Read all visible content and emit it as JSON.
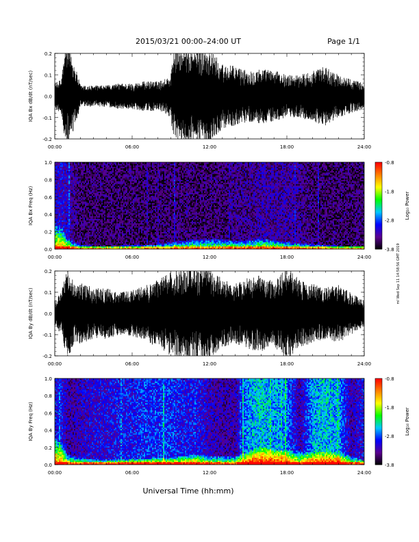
{
  "header": {
    "date_range": "2015/03/21   00:00–24:00 UT",
    "page": "Page 1/1"
  },
  "footer": {
    "xlabel": "Universal Time (hh:mm)"
  },
  "side_note": "ml Wed Sep 11 14:58:56 GMT 2019",
  "colors": {
    "trace": "#000000",
    "spectrogram_low": "#0a0010",
    "colormap": [
      "#000000",
      "#5a0090",
      "#0000ff",
      "#00c8ff",
      "#00ff00",
      "#ffff00",
      "#ff8000",
      "#ff0000"
    ]
  },
  "chart_data": [
    {
      "type": "line",
      "id": "bx_waveform",
      "ylabel": "IQA Bx dB/dt (nT/sec)",
      "xlim": [
        0,
        24
      ],
      "ylim": [
        -0.2,
        0.2
      ],
      "xticks": [
        "00:00",
        "06:00",
        "12:00",
        "18:00",
        "24:00"
      ],
      "yticks": [
        "-0.2",
        "-0.1",
        "0.0",
        "0.1",
        "0.2"
      ],
      "x": [
        0,
        0.5,
        0.8,
        1.0,
        1.3,
        2,
        3,
        4,
        5,
        6,
        7,
        8,
        8.5,
        9,
        9.2,
        10,
        11,
        12,
        13,
        14,
        15,
        16,
        17,
        18,
        19,
        20,
        21,
        22,
        23,
        24
      ],
      "y": [
        0.06,
        0.08,
        0.22,
        0.22,
        0.2,
        0.05,
        0.05,
        0.05,
        0.06,
        0.06,
        0.07,
        0.07,
        0.08,
        0.1,
        0.22,
        0.22,
        0.22,
        0.22,
        0.15,
        0.14,
        0.12,
        0.13,
        0.12,
        0.1,
        0.1,
        0.12,
        0.14,
        0.1,
        0.08,
        0.06
      ]
    },
    {
      "type": "heatmap",
      "id": "bx_spectrogram",
      "ylabel": "IQA Bx Freq (Hz)",
      "xlim": [
        0,
        24
      ],
      "ylim": [
        0.0,
        1.0
      ],
      "xticks": [
        "00:00",
        "06:00",
        "12:00",
        "18:00",
        "24:00"
      ],
      "yticks": [
        "0.0",
        "0.2",
        "0.4",
        "0.6",
        "0.8",
        "1.0"
      ],
      "colorbar": {
        "label": "Log₁₀ Power",
        "ticks": [
          "-0.8",
          "-1.8",
          "-2.8",
          "-3.8"
        ],
        "range": [
          -3.8,
          -0.8
        ]
      },
      "x": [
        0,
        0.5,
        1,
        1.5,
        2,
        3,
        4,
        5,
        6,
        7,
        8,
        9,
        10,
        11,
        12,
        13,
        14,
        15,
        16,
        17,
        18,
        19,
        20,
        21,
        22,
        23,
        24
      ],
      "low_band_top": [
        0.3,
        0.25,
        0.12,
        0.08,
        0.05,
        0.04,
        0.04,
        0.04,
        0.05,
        0.05,
        0.06,
        0.08,
        0.1,
        0.12,
        0.12,
        0.12,
        0.1,
        0.1,
        0.12,
        0.1,
        0.08,
        0.07,
        0.06,
        0.05,
        0.04,
        0.04,
        0.04
      ],
      "background_level": [
        -3.2,
        -3.1,
        -3.2,
        -3.4,
        -3.5,
        -3.5,
        -3.5,
        -3.5,
        -3.5,
        -3.5,
        -3.5,
        -3.5,
        -3.5,
        -3.5,
        -3.5,
        -3.5,
        -3.4,
        -3.4,
        -3.3,
        -3.3,
        -3.3,
        -3.4,
        -3.5,
        -3.5,
        -3.5,
        -3.5,
        -3.5
      ]
    },
    {
      "type": "line",
      "id": "by_waveform",
      "ylabel": "IQA By dB/dt (nT/sec)",
      "xlim": [
        0,
        24
      ],
      "ylim": [
        -0.2,
        0.2
      ],
      "xticks": [
        "00:00",
        "06:00",
        "12:00",
        "18:00",
        "24:00"
      ],
      "yticks": [
        "-0.2",
        "-0.1",
        "0.0",
        "0.1",
        "0.2"
      ],
      "x": [
        0,
        0.5,
        1,
        1.5,
        2,
        3,
        4,
        5,
        6,
        7,
        8,
        9,
        10,
        11,
        12,
        13,
        14,
        15,
        16,
        17,
        18,
        19,
        20,
        21,
        22,
        23,
        24
      ],
      "y": [
        0.06,
        0.1,
        0.22,
        0.14,
        0.15,
        0.12,
        0.12,
        0.1,
        0.11,
        0.13,
        0.16,
        0.2,
        0.22,
        0.22,
        0.22,
        0.16,
        0.14,
        0.17,
        0.18,
        0.16,
        0.22,
        0.16,
        0.14,
        0.12,
        0.14,
        0.1,
        0.06
      ]
    },
    {
      "type": "heatmap",
      "id": "by_spectrogram",
      "ylabel": "IQA By Freq (Hz)",
      "xlim": [
        0,
        24
      ],
      "ylim": [
        0.0,
        1.0
      ],
      "xticks": [
        "00:00",
        "06:00",
        "12:00",
        "18:00",
        "24:00"
      ],
      "yticks": [
        "0.0",
        "0.2",
        "0.4",
        "0.6",
        "0.8",
        "1.0"
      ],
      "colorbar": {
        "label": "Log₁₀ Power",
        "ticks": [
          "-0.8",
          "-1.8",
          "-2.8",
          "-3.8"
        ],
        "range": [
          -3.8,
          -0.8
        ]
      },
      "x": [
        0,
        0.5,
        1,
        1.5,
        2,
        3,
        4,
        5,
        6,
        7,
        8,
        9,
        10,
        11,
        12,
        13,
        14,
        15,
        16,
        17,
        18,
        19,
        20,
        21,
        22,
        23,
        24
      ],
      "low_band_top": [
        0.3,
        0.25,
        0.12,
        0.1,
        0.08,
        0.06,
        0.06,
        0.06,
        0.07,
        0.07,
        0.08,
        0.08,
        0.1,
        0.12,
        0.1,
        0.1,
        0.1,
        0.15,
        0.2,
        0.18,
        0.16,
        0.16,
        0.14,
        0.15,
        0.14,
        0.1,
        0.05
      ],
      "background_level": [
        -3.0,
        -3.0,
        -3.3,
        -3.3,
        -3.2,
        -3.1,
        -3.1,
        -3.0,
        -3.0,
        -2.9,
        -2.9,
        -2.9,
        -3.0,
        -3.0,
        -3.2,
        -3.3,
        -3.3,
        -2.6,
        -2.5,
        -2.6,
        -2.7,
        -3.3,
        -2.6,
        -2.5,
        -2.6,
        -3.3,
        -3.0
      ]
    }
  ]
}
